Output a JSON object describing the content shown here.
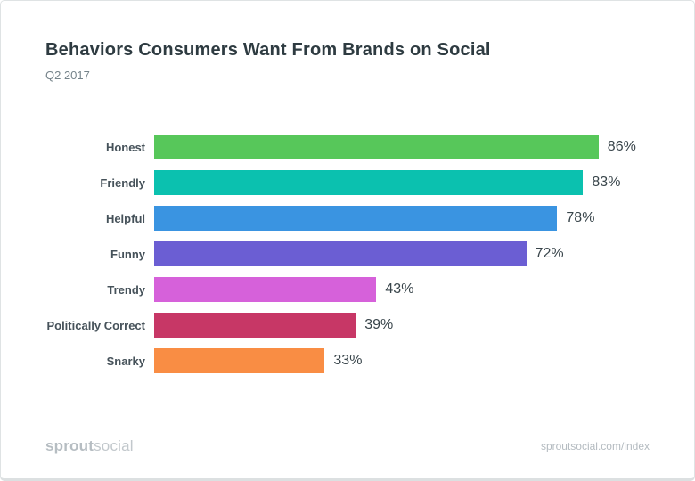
{
  "header": {
    "title": "Behaviors Consumers Want From Brands on Social",
    "subtitle": "Q2 2017"
  },
  "chart_data": {
    "type": "bar",
    "orientation": "horizontal",
    "title": "Behaviors Consumers Want From Brands on Social",
    "subtitle": "Q2 2017",
    "categories": [
      "Honest",
      "Friendly",
      "Helpful",
      "Funny",
      "Trendy",
      "Politically Correct",
      "Snarky"
    ],
    "values": [
      86,
      83,
      78,
      72,
      43,
      39,
      33
    ],
    "value_labels": [
      "86%",
      "83%",
      "78%",
      "72%",
      "43%",
      "39%",
      "33%"
    ],
    "value_suffix": "%",
    "bar_colors": [
      "#57c75a",
      "#0bc1af",
      "#3a94e1",
      "#6b5ed3",
      "#d661da",
      "#c73766",
      "#f98d44"
    ],
    "xlim": [
      0,
      100
    ],
    "grid": false,
    "legend": false,
    "category_label_position": "left",
    "value_label_position": "right-of-bar"
  },
  "footer": {
    "logo_bold": "sprout",
    "logo_light": "social",
    "source": "sproutsocial.com/index"
  },
  "colors": {
    "title_text": "#2e3b41",
    "subtitle_text": "#75838a",
    "category_text": "#46525a",
    "value_text": "#39454b",
    "footer_text": "#b6bdc2",
    "card_border": "#dfe3e4",
    "background": "#ffffff"
  }
}
